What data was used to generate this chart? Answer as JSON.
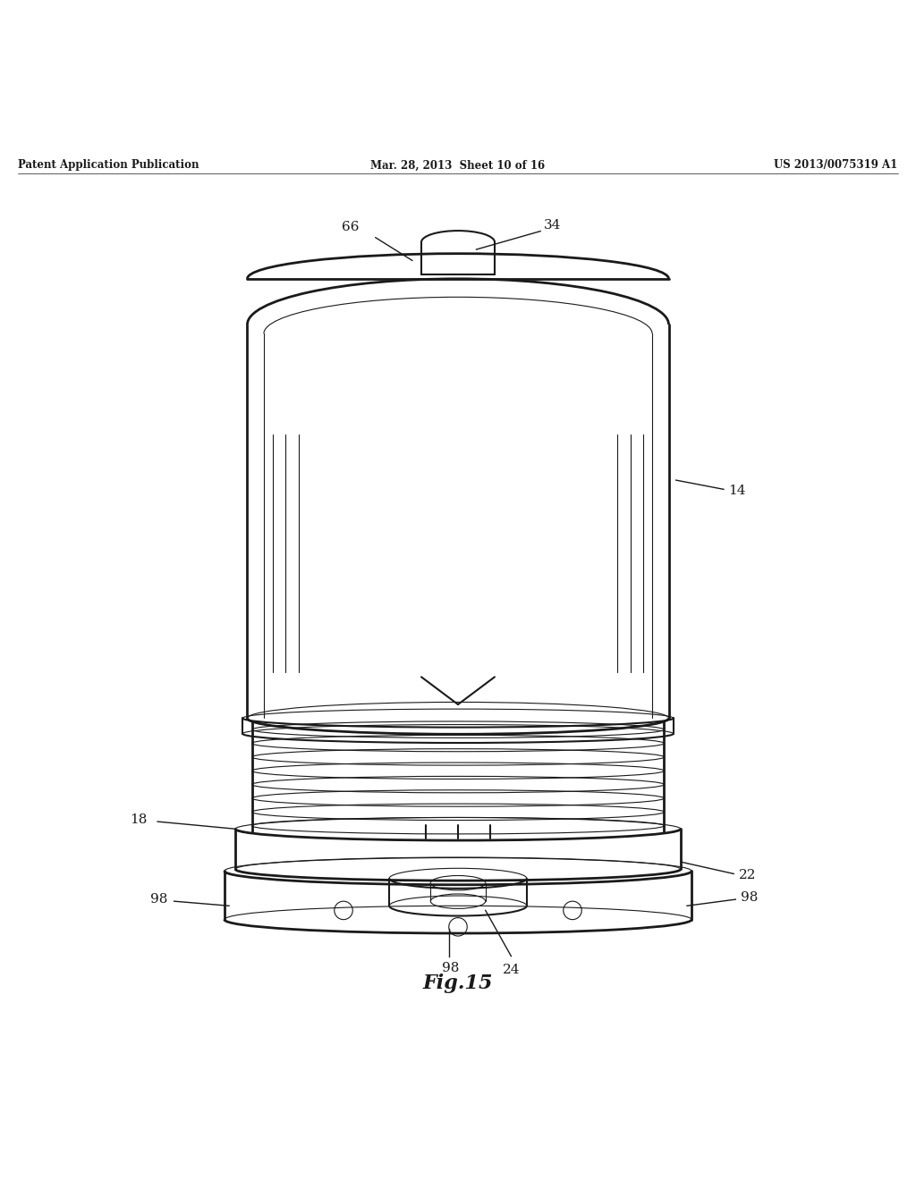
{
  "header_left": "Patent Application Publication",
  "header_mid": "Mar. 28, 2013  Sheet 10 of 16",
  "header_right": "US 2013/0075319 A1",
  "figure_label": "Fig.15",
  "bg_color": "#ffffff",
  "line_color": "#1a1a1a",
  "label_fontsize": 11,
  "header_fontsize": 8.5,
  "fig_label_fontsize": 16
}
